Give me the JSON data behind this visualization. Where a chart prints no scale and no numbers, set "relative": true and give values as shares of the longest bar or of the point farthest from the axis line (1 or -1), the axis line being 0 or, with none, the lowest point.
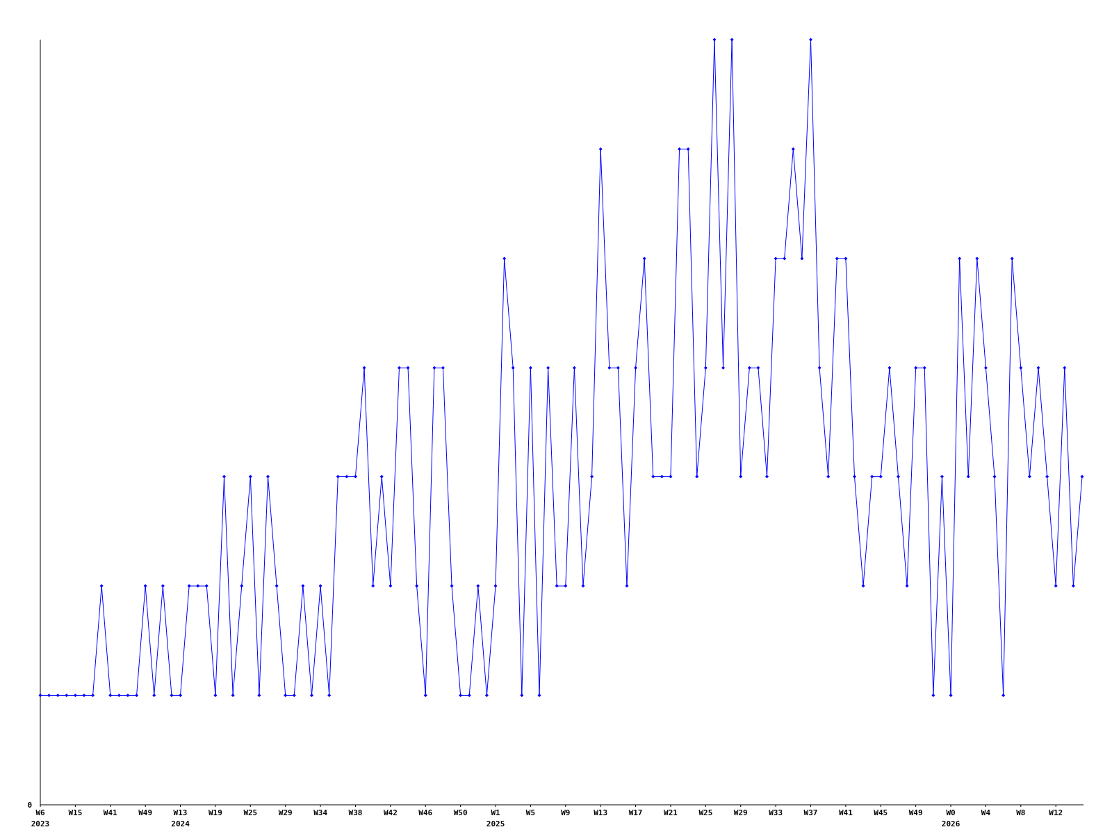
{
  "chart_data": {
    "type": "line",
    "relative": true,
    "color": "#0000ff",
    "marker": "diamond",
    "annotations": [
      "0"
    ],
    "categories": [
      "W6\n2023",
      null,
      null,
      null,
      "W15",
      null,
      null,
      null,
      "W41",
      null,
      null,
      null,
      "W49",
      null,
      null,
      null,
      "W13\n2024",
      null,
      null,
      null,
      "W19",
      null,
      null,
      null,
      "W25",
      null,
      null,
      null,
      "W29",
      null,
      null,
      null,
      "W34",
      null,
      null,
      null,
      "W38",
      null,
      null,
      null,
      "W42",
      null,
      null,
      null,
      "W46",
      null,
      null,
      null,
      "W50",
      null,
      null,
      null,
      "W1\n2025",
      null,
      null,
      null,
      "W5",
      null,
      null,
      null,
      "W9",
      null,
      null,
      null,
      "W13",
      null,
      null,
      null,
      "W17",
      null,
      null,
      null,
      "W21",
      null,
      null,
      null,
      "W25",
      null,
      null,
      null,
      "W29",
      null,
      null,
      null,
      "W33",
      null,
      null,
      null,
      "W37",
      null,
      null,
      null,
      "W41",
      null,
      null,
      null,
      "W45",
      null,
      null,
      null,
      "W49",
      null,
      null,
      null,
      "W0\n2026",
      null,
      null,
      null,
      "W4",
      null,
      null,
      null,
      "W8",
      null,
      null,
      null,
      "W12",
      null,
      null,
      null
    ],
    "values": [
      0.143,
      0.143,
      0.143,
      0.143,
      0.143,
      0.143,
      0.143,
      0.286,
      0.143,
      0.143,
      0.143,
      0.143,
      0.286,
      0.143,
      0.286,
      0.143,
      0.143,
      0.286,
      0.286,
      0.286,
      0.143,
      0.429,
      0.143,
      0.286,
      0.429,
      0.143,
      0.429,
      0.286,
      0.143,
      0.143,
      0.286,
      0.143,
      0.286,
      0.143,
      0.429,
      0.429,
      0.429,
      0.571,
      0.286,
      0.429,
      0.286,
      0.571,
      0.571,
      0.286,
      0.143,
      0.571,
      0.571,
      0.286,
      0.143,
      0.143,
      0.286,
      0.143,
      0.286,
      0.714,
      0.571,
      0.143,
      0.571,
      0.143,
      0.571,
      0.286,
      0.286,
      0.571,
      0.286,
      0.429,
      0.857,
      0.571,
      0.571,
      0.286,
      0.571,
      0.714,
      0.429,
      0.429,
      0.429,
      0.857,
      0.857,
      0.429,
      0.571,
      1,
      0.571,
      1,
      0.429,
      0.571,
      0.571,
      0.429,
      0.714,
      0.714,
      0.857,
      0.714,
      1,
      0.571,
      0.429,
      0.714,
      0.714,
      0.429,
      0.286,
      0.429,
      0.429,
      0.571,
      0.429,
      0.286,
      0.571,
      0.571,
      0.143,
      0.429,
      0.143,
      0.714,
      0.429,
      0.714,
      0.571,
      0.429,
      0.143,
      0.714,
      0.571,
      0.429,
      0.571,
      0.429,
      0.286,
      0.571,
      0.286,
      0.429
    ]
  }
}
